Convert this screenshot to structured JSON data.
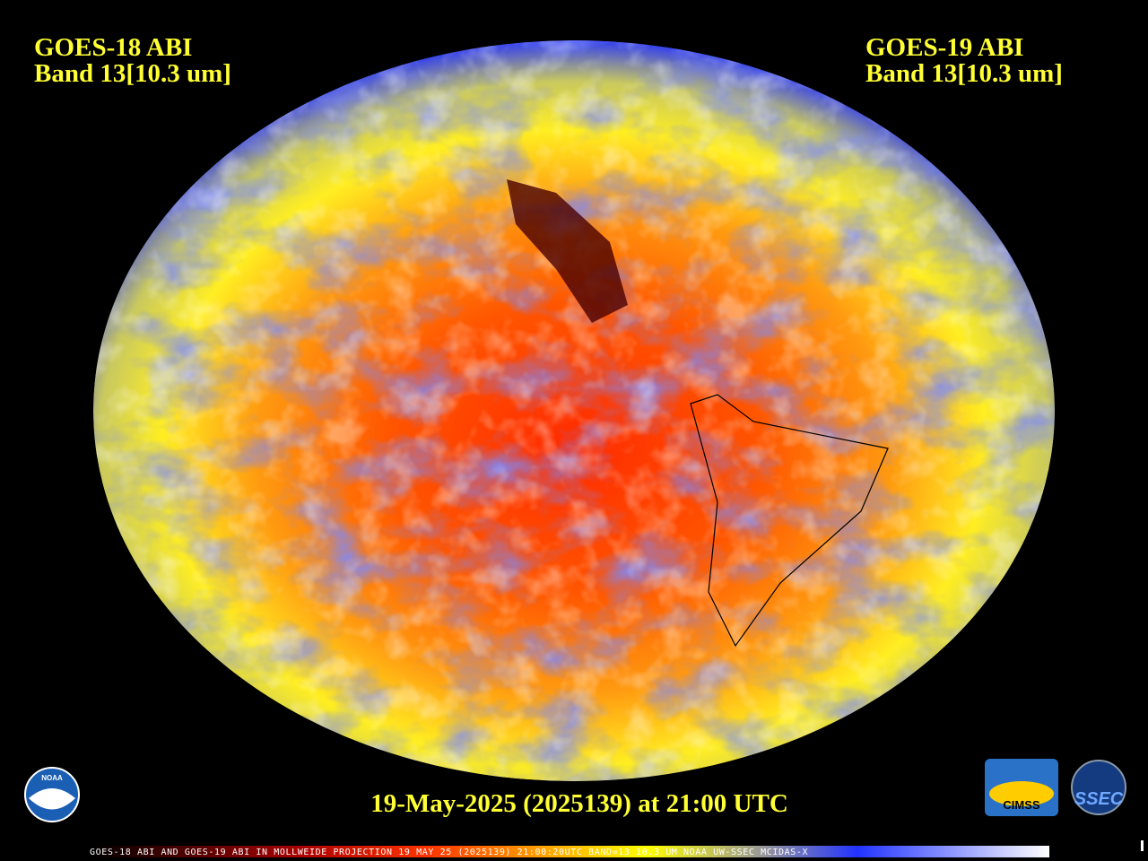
{
  "left_label": {
    "line1": "GOES-18 ABI",
    "line2": "Band 13[10.3 um]"
  },
  "right_label": {
    "line1": "GOES-19 ABI",
    "line2": "Band 13[10.3 um]"
  },
  "timestamp": "19-May-2025 (2025139) at 21:00 UTC",
  "footer": "GOES-18 ABI AND GOES-19 ABI IN MOLLWEIDE PROJECTION 19 MAY 25 (2025139) 21:00:20UTC BAND=13 10.3 UM NOAA UW-SSEC MCIDAS-X",
  "logos": {
    "noaa": "NOAA",
    "cimss": "CIMSS",
    "ssec": "SSEC"
  }
}
